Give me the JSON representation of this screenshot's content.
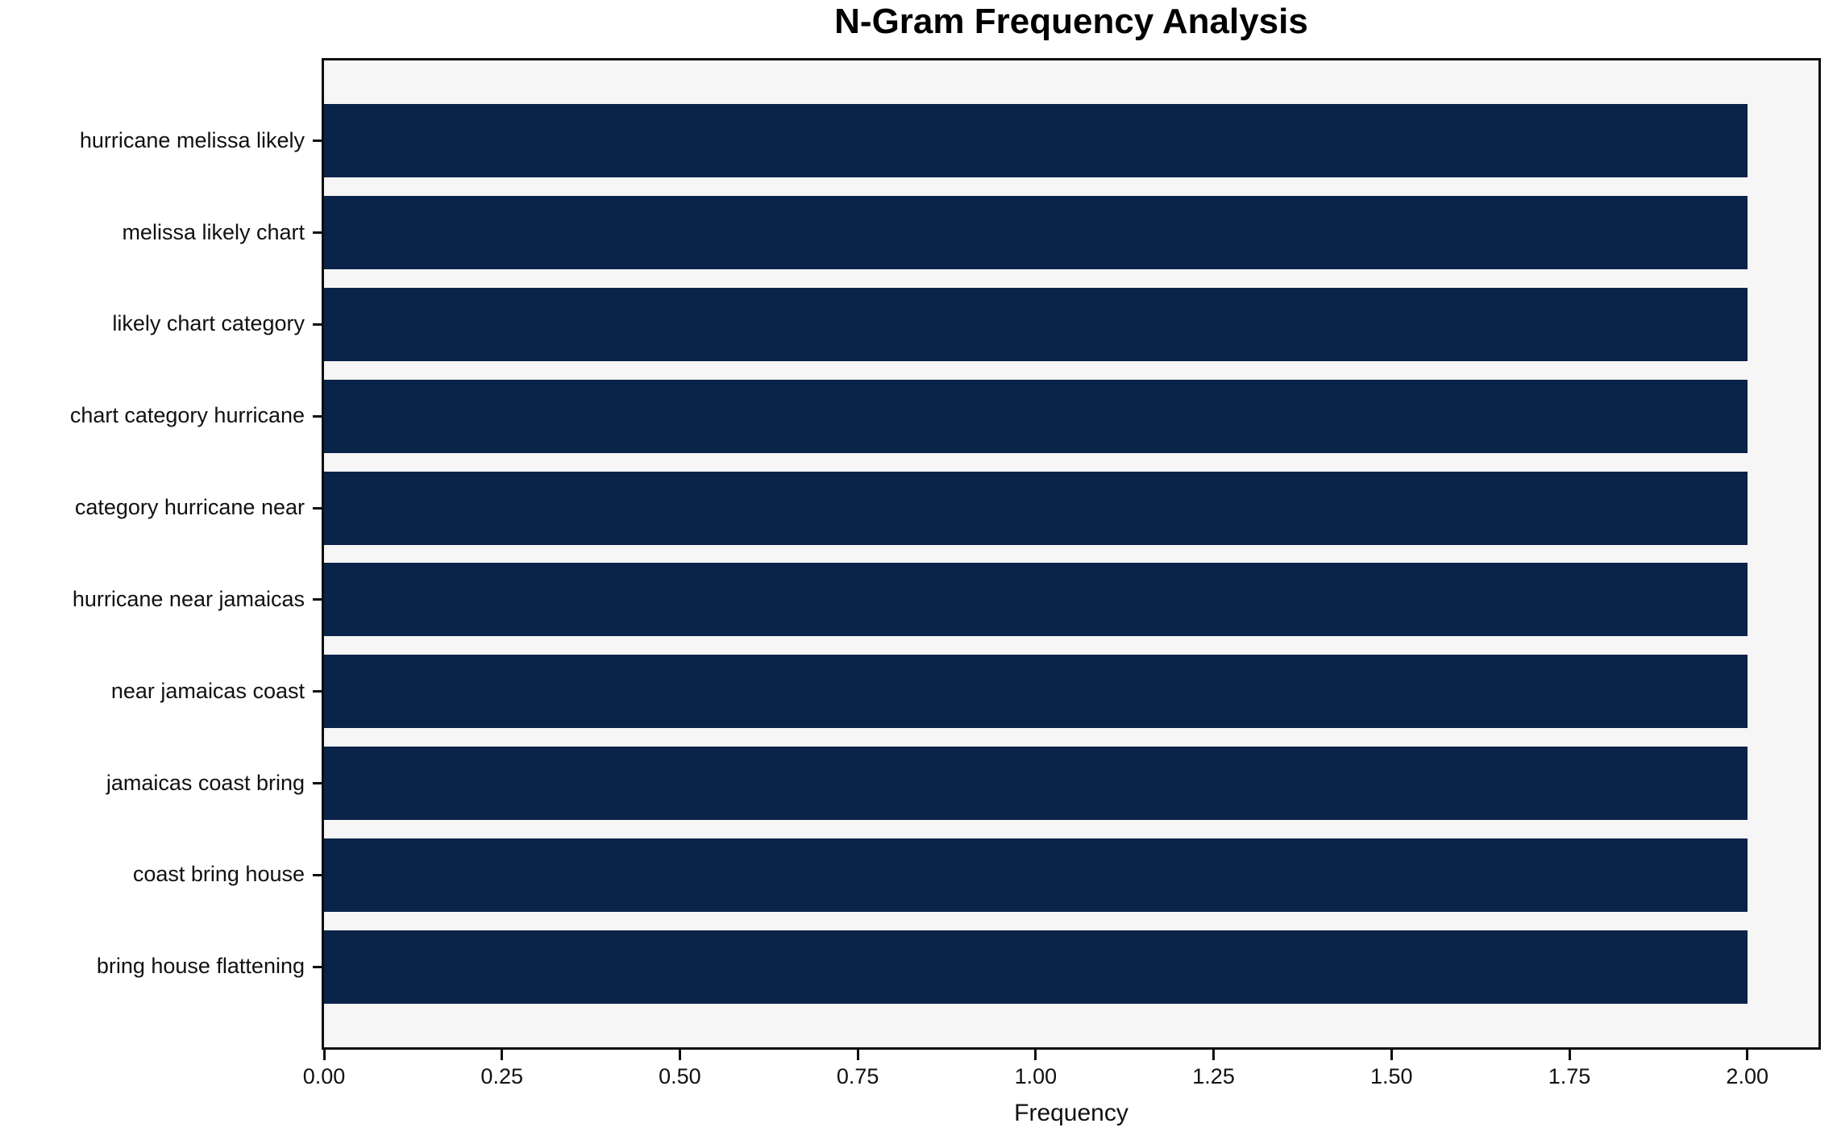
{
  "chart_data": {
    "type": "bar",
    "orientation": "horizontal",
    "title": "N-Gram Frequency Analysis",
    "xlabel": "Frequency",
    "ylabel": "",
    "categories": [
      "hurricane melissa likely",
      "melissa likely chart",
      "likely chart category",
      "chart category hurricane",
      "category hurricane near",
      "hurricane near jamaicas",
      "near jamaicas coast",
      "jamaicas coast bring",
      "coast bring house",
      "bring house flattening"
    ],
    "values": [
      2,
      2,
      2,
      2,
      2,
      2,
      2,
      2,
      2,
      2
    ],
    "xlim": [
      0,
      2.1
    ],
    "xticks": [
      "0.00",
      "0.25",
      "0.50",
      "0.75",
      "1.00",
      "1.25",
      "1.50",
      "1.75",
      "2.00"
    ],
    "xtick_values": [
      0,
      0.25,
      0.5,
      0.75,
      1.0,
      1.25,
      1.5,
      1.75,
      2.0
    ],
    "grid": false,
    "legend": null,
    "bar_height_ratio": 0.8,
    "colors": {
      "bar": "#0a2349",
      "plot_bg": "#f6f6f6",
      "fig_bg": "#ffffff",
      "frame": "#0d0d0d",
      "text": "#111111"
    }
  }
}
